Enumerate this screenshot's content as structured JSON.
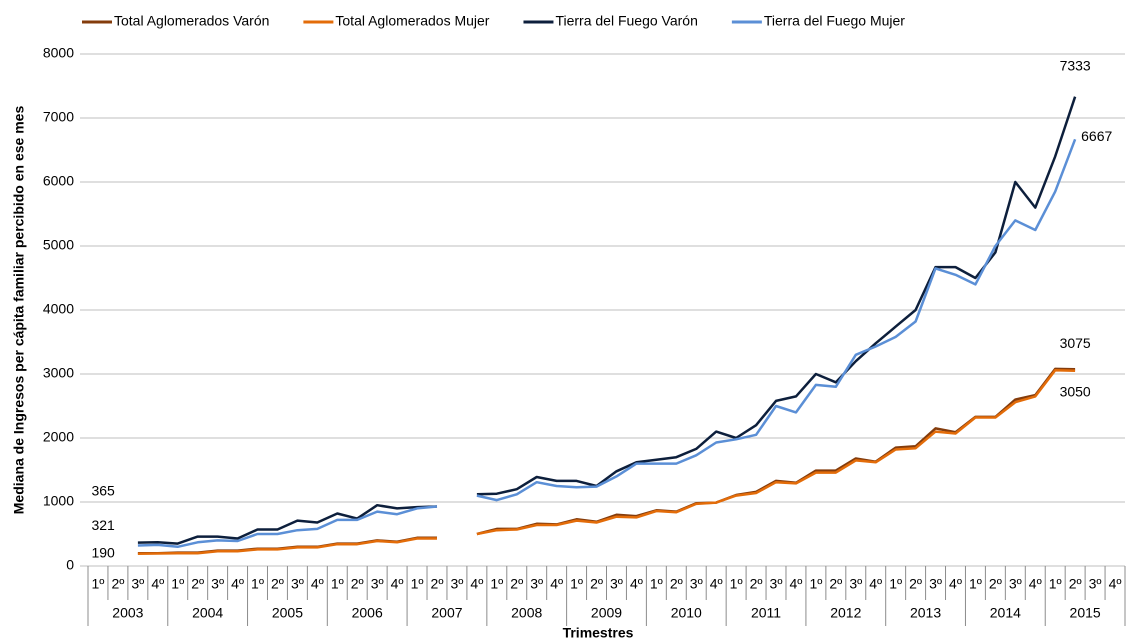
{
  "chart_data": {
    "type": "line",
    "y_axis_label": "Mediana de Ingresos per cápita familiar percibido en ese mes",
    "x_axis_label": "Trimestres",
    "categories": [
      "1º",
      "2º",
      "3º",
      "4º",
      "1º",
      "2º",
      "3º",
      "4º",
      "1º",
      "2º",
      "3º",
      "4º",
      "1º",
      "2º",
      "3º",
      "4º",
      "1º",
      "2º",
      "3º",
      "4º",
      "1º",
      "2º",
      "3º",
      "4º",
      "1º",
      "2º",
      "3º",
      "4º",
      "1º",
      "2º",
      "3º",
      "4º",
      "1º",
      "2º",
      "3º",
      "4º",
      "1º",
      "2º",
      "3º",
      "4º",
      "1º",
      "2º",
      "3º",
      "4º",
      "1º",
      "2º",
      "3º",
      "4º",
      "1º",
      "2º",
      "3º",
      "4º"
    ],
    "years": [
      "2003",
      "2004",
      "2005",
      "2006",
      "2007",
      "2008",
      "2009",
      "2010",
      "2011",
      "2012",
      "2013",
      "2014",
      "2015"
    ],
    "ylim": [
      0,
      8000
    ],
    "yticks": [
      0,
      1000,
      2000,
      3000,
      4000,
      5000,
      6000,
      7000,
      8000
    ],
    "grid": true,
    "legend": "top",
    "series": [
      {
        "name": "Total Aglomerados Varón",
        "color": "#843c0c",
        "values": [
          null,
          null,
          200,
          200,
          210,
          210,
          240,
          240,
          270,
          270,
          300,
          300,
          350,
          350,
          400,
          380,
          440,
          440,
          null,
          500,
          580,
          580,
          660,
          650,
          730,
          690,
          800,
          780,
          870,
          850,
          980,
          990,
          1110,
          1160,
          1330,
          1300,
          1490,
          1490,
          1680,
          1630,
          1850,
          1870,
          2150,
          2090,
          2330,
          2330,
          2600,
          2670,
          3080,
          3075,
          null,
          null
        ]
      },
      {
        "name": "Total Aglomerados Mujer",
        "color": "#e36c09",
        "values": [
          null,
          null,
          190,
          195,
          200,
          200,
          230,
          230,
          260,
          260,
          290,
          290,
          340,
          340,
          390,
          370,
          430,
          430,
          null,
          500,
          560,
          570,
          640,
          640,
          710,
          680,
          770,
          760,
          860,
          840,
          970,
          990,
          1100,
          1140,
          1310,
          1290,
          1460,
          1460,
          1650,
          1620,
          1820,
          1840,
          2100,
          2070,
          2320,
          2320,
          2560,
          2650,
          3060,
          3050,
          null,
          null
        ]
      },
      {
        "name": "Tierra del Fuego Varón",
        "color": "#0d1f3c",
        "values": [
          null,
          null,
          365,
          370,
          350,
          460,
          460,
          430,
          570,
          570,
          710,
          680,
          820,
          740,
          950,
          900,
          920,
          930,
          null,
          1120,
          1130,
          1200,
          1390,
          1330,
          1330,
          1250,
          1480,
          1620,
          1660,
          1700,
          1830,
          2100,
          2000,
          2200,
          2580,
          2650,
          3000,
          2870,
          3200,
          3480,
          3740,
          4000,
          4670,
          4670,
          4500,
          4900,
          6000,
          5600,
          6400,
          7333,
          null,
          null
        ]
      },
      {
        "name": "Tierra del Fuego Mujer",
        "color": "#5b8fd6",
        "values": [
          null,
          null,
          321,
          330,
          300,
          370,
          400,
          390,
          500,
          500,
          560,
          580,
          720,
          720,
          850,
          810,
          900,
          930,
          null,
          1100,
          1030,
          1120,
          1310,
          1250,
          1230,
          1240,
          1400,
          1600,
          1600,
          1600,
          1730,
          1930,
          1980,
          2050,
          2500,
          2400,
          2830,
          2800,
          3300,
          3430,
          3580,
          3820,
          4650,
          4550,
          4400,
          5000,
          5400,
          5250,
          5850,
          6667,
          null,
          null
        ]
      }
    ]
  }
}
